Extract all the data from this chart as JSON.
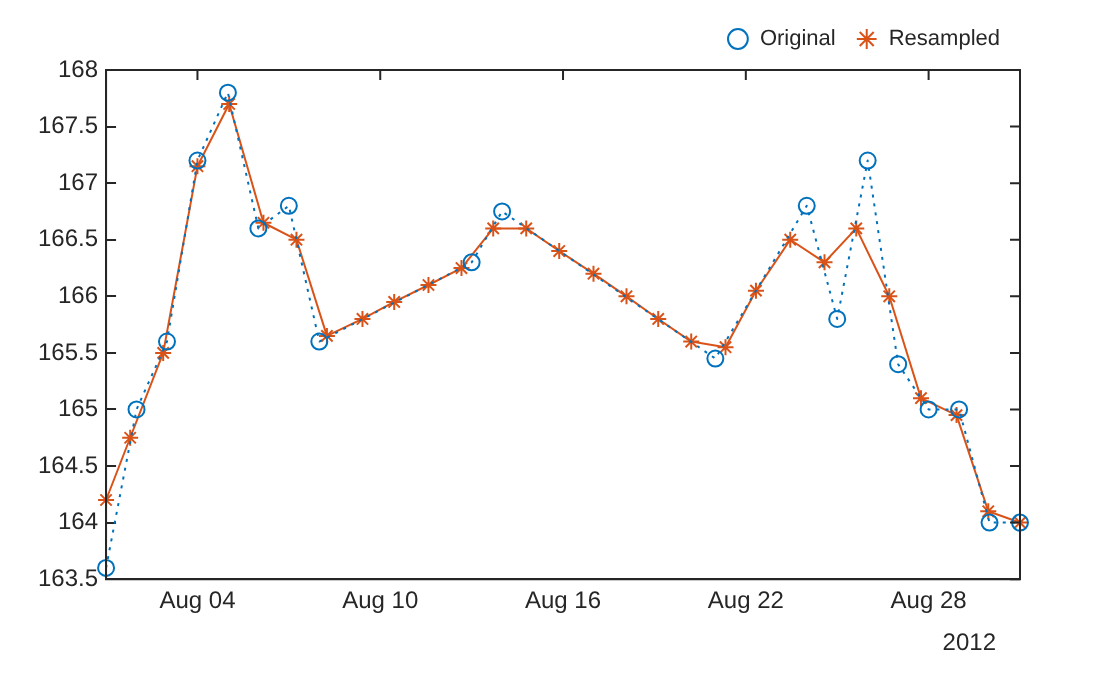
{
  "chart_data": {
    "type": "line",
    "xlim": [
      "--08-01",
      "--08-31"
    ],
    "xticks": [
      {
        "value": "--08-04",
        "label": "Aug 04"
      },
      {
        "value": "--08-10",
        "label": "Aug 10"
      },
      {
        "value": "--08-16",
        "label": "Aug 16"
      },
      {
        "value": "--08-22",
        "label": "Aug 22"
      },
      {
        "value": "--08-28",
        "label": "Aug 28"
      }
    ],
    "ylim": [
      163.5,
      168
    ],
    "yticks": [
      163.5,
      164,
      164.5,
      165,
      165.5,
      166,
      166.5,
      167,
      167.5,
      168
    ],
    "grid": false,
    "legend": "top right",
    "annotations": [
      "2012"
    ],
    "series": [
      {
        "name": "Original",
        "color": "#0072bd",
        "marker": "circle",
        "line_style": "dotted",
        "x": [
          "--08-01",
          "--08-02",
          "--08-03",
          "--08-04",
          "--08-05",
          "--08-06",
          "--08-07",
          "--08-08",
          "--08-13",
          "--08-14",
          "--08-21",
          "--08-24",
          "--08-25",
          "--08-26",
          "--08-27",
          "--08-28",
          "--08-29",
          "--08-30",
          "--08-31"
        ],
        "values": [
          163.6,
          165.0,
          165.6,
          167.2,
          167.8,
          166.6,
          166.8,
          165.6,
          166.3,
          166.75,
          165.45,
          166.8,
          165.8,
          167.2,
          165.4,
          165.0,
          165.0,
          164.0,
          164.0
        ]
      },
      {
        "name": "Resampled",
        "color": "#d95319",
        "marker": "cross",
        "line_style": "solid",
        "x": [
          "--08-01",
          "--08-01T19:00",
          "--08-02T21:00",
          "--08-04",
          "--08-05T01:00",
          "--08-06T04:00",
          "--08-07T06:00",
          "--08-08T06:00",
          "--08-09T10:00",
          "--08-10T11:00",
          "--08-11T14:00",
          "--08-12T16:00",
          "--08-13T17:00",
          "--08-14T19:00",
          "--08-15T21:00",
          "--08-17",
          "--08-18T02:00",
          "--08-19T03:00",
          "--08-20T05:00",
          "--08-21T08:00",
          "--08-22T08:00",
          "--08-23T11:00",
          "--08-24T14:00",
          "--08-25T15:00",
          "--08-26T17:00",
          "--08-27T18:00",
          "--08-28T22:00",
          "--08-29T23:00",
          "--08-31"
        ],
        "values": [
          164.2,
          164.75,
          165.5,
          167.15,
          167.7,
          166.65,
          166.5,
          165.65,
          165.8,
          165.95,
          166.1,
          166.25,
          166.6,
          166.6,
          166.4,
          166.2,
          166.0,
          165.8,
          165.6,
          165.55,
          166.05,
          166.5,
          166.3,
          166.6,
          166.0,
          165.1,
          164.95,
          164.1,
          164.0
        ]
      }
    ]
  }
}
